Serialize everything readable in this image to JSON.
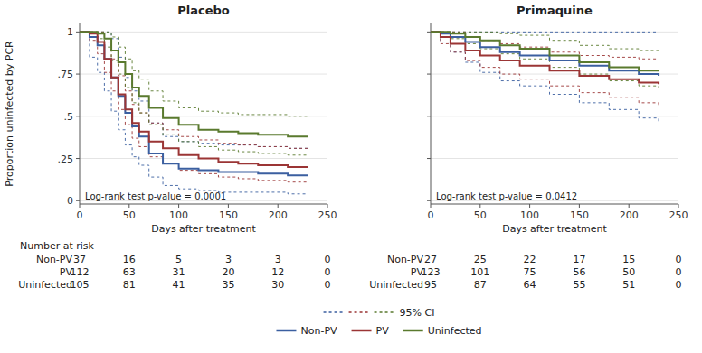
{
  "chart_data": [
    {
      "type": "step",
      "title": "Placebo",
      "x_label": "Days after treatment",
      "y_label": "Proportion uninfected by PCR",
      "annotations": [
        "Log-rank test p-value = 0.0001"
      ],
      "xlim": [
        0,
        250
      ],
      "ylim": [
        -0.02,
        1.05
      ],
      "xticks": [
        0,
        50,
        100,
        150,
        200,
        250
      ],
      "yticks": [
        0,
        {
          "value": 0.25,
          "label": ".25"
        },
        {
          "value": 0.5,
          "label": ".5"
        },
        {
          "value": 0.75,
          "label": ".75"
        },
        1
      ],
      "grid": true,
      "ci_label": "95% CI",
      "series": [
        {
          "name": "Non-PV",
          "color": "#3B5FA0",
          "x": [
            0,
            10,
            18,
            25,
            32,
            39,
            46,
            53,
            60,
            70,
            84,
            100,
            120,
            140,
            160,
            180,
            210,
            230
          ],
          "values": [
            1.0,
            0.97,
            0.92,
            0.84,
            0.73,
            0.62,
            0.52,
            0.44,
            0.38,
            0.28,
            0.22,
            0.19,
            0.18,
            0.17,
            0.17,
            0.16,
            0.15,
            0.15
          ],
          "lower": [
            1.0,
            0.85,
            0.76,
            0.65,
            0.53,
            0.42,
            0.33,
            0.26,
            0.21,
            0.14,
            0.09,
            0.07,
            0.06,
            0.05,
            0.05,
            0.05,
            0.04,
            0.04
          ],
          "upper": [
            1.0,
            1.0,
            1.0,
            1.0,
            0.96,
            0.85,
            0.73,
            0.65,
            0.59,
            0.46,
            0.38,
            0.35,
            0.34,
            0.33,
            0.33,
            0.32,
            0.31,
            0.31
          ]
        },
        {
          "name": "PV",
          "color": "#9B3535",
          "x": [
            0,
            10,
            18,
            25,
            32,
            39,
            46,
            53,
            60,
            70,
            84,
            100,
            120,
            140,
            160,
            180,
            210,
            230
          ],
          "values": [
            1.0,
            0.99,
            0.94,
            0.84,
            0.73,
            0.63,
            0.54,
            0.46,
            0.41,
            0.35,
            0.31,
            0.27,
            0.25,
            0.23,
            0.22,
            0.21,
            0.2,
            0.2
          ],
          "lower": [
            1.0,
            0.95,
            0.87,
            0.76,
            0.65,
            0.54,
            0.45,
            0.37,
            0.32,
            0.26,
            0.22,
            0.18,
            0.16,
            0.14,
            0.13,
            0.12,
            0.11,
            0.11
          ],
          "upper": [
            1.0,
            1.0,
            1.0,
            0.94,
            0.84,
            0.74,
            0.65,
            0.57,
            0.52,
            0.46,
            0.42,
            0.38,
            0.36,
            0.34,
            0.33,
            0.32,
            0.31,
            0.31
          ]
        },
        {
          "name": "Uninfected",
          "color": "#5A7A2E",
          "x": [
            0,
            10,
            18,
            25,
            32,
            39,
            46,
            53,
            60,
            70,
            84,
            100,
            120,
            140,
            160,
            180,
            210,
            230
          ],
          "values": [
            1.0,
            1.0,
            0.99,
            0.96,
            0.89,
            0.82,
            0.75,
            0.67,
            0.62,
            0.55,
            0.49,
            0.45,
            0.42,
            0.41,
            0.4,
            0.39,
            0.38,
            0.38
          ],
          "lower": [
            1.0,
            1.0,
            0.96,
            0.91,
            0.83,
            0.75,
            0.67,
            0.58,
            0.52,
            0.45,
            0.39,
            0.35,
            0.32,
            0.3,
            0.29,
            0.28,
            0.27,
            0.27
          ],
          "upper": [
            1.0,
            1.0,
            1.0,
            1.0,
            0.97,
            0.91,
            0.84,
            0.77,
            0.72,
            0.65,
            0.59,
            0.55,
            0.53,
            0.52,
            0.51,
            0.51,
            0.5,
            0.5
          ]
        }
      ],
      "risk_table": {
        "title": "Number at risk",
        "times": [
          0,
          50,
          100,
          150,
          200,
          250
        ],
        "counts": [
          [
            37,
            16,
            5,
            3,
            3,
            0
          ],
          [
            112,
            63,
            31,
            20,
            12,
            0
          ],
          [
            105,
            81,
            41,
            35,
            30,
            0
          ]
        ]
      }
    },
    {
      "type": "step",
      "title": "Primaquine",
      "x_label": "Days after treatment",
      "annotations": [
        "Log-rank test p-value = 0.0412"
      ],
      "xlim": [
        0,
        250
      ],
      "ylim": [
        -0.02,
        1.05
      ],
      "xticks": [
        0,
        50,
        100,
        150,
        200,
        250
      ],
      "yticks": [
        0,
        0.25,
        0.5,
        0.75,
        1
      ],
      "tick_labels": "x",
      "grid": true,
      "series": [
        {
          "name": "Non-PV",
          "color": "#3B5FA0",
          "x": [
            0,
            10,
            20,
            35,
            50,
            70,
            90,
            120,
            150,
            180,
            210,
            230
          ],
          "values": [
            1.0,
            0.99,
            0.97,
            0.94,
            0.91,
            0.88,
            0.86,
            0.83,
            0.8,
            0.77,
            0.75,
            0.74
          ],
          "lower": [
            1.0,
            0.94,
            0.88,
            0.82,
            0.76,
            0.71,
            0.68,
            0.63,
            0.58,
            0.54,
            0.49,
            0.47
          ],
          "upper": [
            1.0,
            1.0,
            1.0,
            1.0,
            1.0,
            1.0,
            1.0,
            1.0,
            1.0,
            1.0,
            1.0,
            1.0
          ]
        },
        {
          "name": "PV",
          "color": "#9B3535",
          "x": [
            0,
            10,
            20,
            35,
            50,
            70,
            90,
            120,
            150,
            180,
            210,
            230
          ],
          "values": [
            1.0,
            0.97,
            0.93,
            0.89,
            0.86,
            0.83,
            0.8,
            0.77,
            0.74,
            0.72,
            0.7,
            0.69
          ],
          "lower": [
            1.0,
            0.93,
            0.88,
            0.83,
            0.79,
            0.75,
            0.72,
            0.68,
            0.64,
            0.61,
            0.58,
            0.56
          ],
          "upper": [
            1.0,
            1.0,
            1.0,
            0.97,
            0.95,
            0.93,
            0.91,
            0.88,
            0.86,
            0.85,
            0.84,
            0.84
          ]
        },
        {
          "name": "Uninfected",
          "color": "#5A7A2E",
          "x": [
            0,
            10,
            20,
            35,
            50,
            70,
            90,
            120,
            150,
            180,
            210,
            230
          ],
          "values": [
            1.0,
            1.0,
            0.99,
            0.97,
            0.95,
            0.92,
            0.9,
            0.86,
            0.82,
            0.79,
            0.77,
            0.77
          ],
          "lower": [
            1.0,
            1.0,
            0.96,
            0.93,
            0.9,
            0.87,
            0.84,
            0.79,
            0.75,
            0.71,
            0.68,
            0.67
          ],
          "upper": [
            1.0,
            1.0,
            1.0,
            1.0,
            1.0,
            0.99,
            0.98,
            0.95,
            0.92,
            0.9,
            0.89,
            0.89
          ]
        }
      ],
      "risk_table": {
        "times": [
          0,
          50,
          100,
          150,
          200,
          250
        ],
        "counts": [
          [
            27,
            25,
            22,
            17,
            15,
            0
          ],
          [
            123,
            101,
            75,
            56,
            50,
            0
          ],
          [
            95,
            87,
            64,
            55,
            51,
            0
          ]
        ]
      }
    }
  ]
}
